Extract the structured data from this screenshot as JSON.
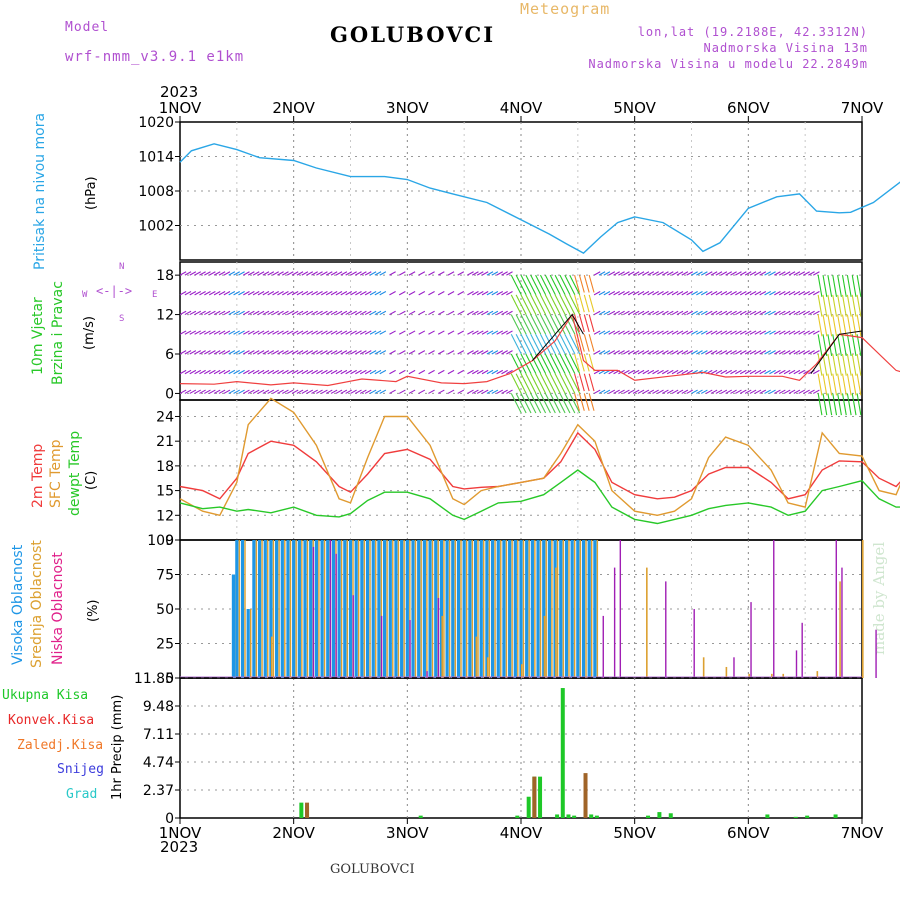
{
  "header": {
    "model_label": "Model",
    "model_name": "wrf-nmm_v3.9.1 e1km",
    "station": "GOLUBOVCI",
    "meteogram": "Meteogram",
    "coords": "lon,lat (19.2188E, 42.3312N)",
    "altitude": "Nadmorska Visina 13m",
    "model_altitude": "Nadmorska Visina u modelu 22.2849m",
    "footer_station": "GOLUBOVCI",
    "credit": "made by Angel"
  },
  "colors": {
    "pressure": "#2aa6e6",
    "temp2m": "#f03c3c",
    "sfc": "#e09a30",
    "dew": "#28c828",
    "high_cloud": "#1e96e6",
    "mid_cloud": "#dca030",
    "low_cloud": "#a01eb4",
    "label_purple": "#b050d0",
    "label_orange": "#e8b868"
  },
  "chart_data": [
    {
      "type": "line",
      "panel": "pressure",
      "ylabel_main": "Pritisak na nivou mora",
      "unit": "(hPa)",
      "year": "2023",
      "x_ticks": [
        "1NOV",
        "2NOV",
        "3NOV",
        "4NOV",
        "5NOV",
        "6NOV",
        "7NOV"
      ],
      "yticks": [
        1002,
        1008,
        1014,
        1020
      ],
      "ylim": [
        996,
        1020
      ],
      "grid": true,
      "series": [
        {
          "x": [
            0,
            0.1,
            0.3,
            0.5,
            0.7,
            1.0,
            1.2,
            1.5,
            1.8,
            2.0,
            2.2,
            2.4,
            2.7,
            3.0,
            3.25,
            3.4,
            3.55,
            3.7,
            3.85,
            4.0,
            4.25,
            4.5,
            4.6,
            4.75,
            5.0,
            5.25,
            5.45,
            5.6,
            5.8,
            5.9,
            6.1,
            6.4,
            6.7,
            7.0
          ],
          "y": [
            1013,
            1015,
            1016.2,
            1015.2,
            1013.8,
            1013.3,
            1012,
            1010.5,
            1010.5,
            1010,
            1008.5,
            1007.5,
            1006,
            1003,
            1000.5,
            998.8,
            997.2,
            1000,
            1002.5,
            1003.5,
            1002.5,
            999.5,
            997.5,
            999,
            1005,
            1007,
            1007.5,
            1004.5,
            1004.2,
            1004.3,
            1006,
            1010.5,
            1015,
            1018.8
          ]
        }
      ]
    },
    {
      "type": "line",
      "panel": "wind",
      "ylabel_main": "10m Vjetar",
      "ylabel_sub": "Brzina i Pravac",
      "unit": "(m/s)",
      "compass": {
        "n": "N",
        "s": "S",
        "e": "E",
        "w": "W"
      },
      "yticks": [
        0,
        6,
        12,
        18
      ],
      "ylim": [
        -1,
        20
      ],
      "series": [
        {
          "x": [
            0,
            0.3,
            0.5,
            0.8,
            1.0,
            1.3,
            1.6,
            1.9,
            2.0,
            2.3,
            2.5,
            2.7,
            2.9,
            3.1,
            3.3,
            3.45,
            3.55,
            3.65,
            3.85,
            4.0,
            4.3,
            4.6,
            4.8,
            5.0,
            5.3,
            5.45,
            5.6,
            5.8,
            6.0,
            6.3,
            6.6,
            6.9,
            7.0
          ],
          "y": [
            1.5,
            1.4,
            1.8,
            1.3,
            1.6,
            1.2,
            2.2,
            1.8,
            2.6,
            1.6,
            1.5,
            1.8,
            3.0,
            5.0,
            8.0,
            12.0,
            5.0,
            3.5,
            3.5,
            2.0,
            2.6,
            3.2,
            2.5,
            2.6,
            2.6,
            2.0,
            4.5,
            9.0,
            8.5,
            3.5,
            2.0,
            1.8,
            1.7
          ]
        }
      ]
    },
    {
      "type": "line",
      "panel": "temperature",
      "ylabel_t2m": "2m Temp",
      "ylabel_sfc": "SFC Temp",
      "ylabel_dew": "dewpt Temp",
      "unit": "(C)",
      "yticks": [
        9,
        12,
        15,
        18,
        21,
        24
      ],
      "ylim": [
        9,
        26
      ],
      "series": [
        {
          "name": "2m Temp",
          "x": [
            0,
            0.2,
            0.35,
            0.5,
            0.6,
            0.8,
            1.0,
            1.2,
            1.4,
            1.5,
            1.65,
            1.8,
            2.0,
            2.2,
            2.4,
            2.5,
            2.65,
            2.8,
            3.0,
            3.2,
            3.35,
            3.5,
            3.65,
            3.8,
            4.0,
            4.2,
            4.35,
            4.5,
            4.65,
            4.8,
            5.0,
            5.2,
            5.35,
            5.5,
            5.65,
            5.8,
            6.0,
            6.15,
            6.3,
            6.5,
            6.65,
            6.8,
            7.0
          ],
          "y": [
            15.5,
            15,
            14,
            16.5,
            19.5,
            21,
            20.5,
            18.5,
            15.5,
            14.8,
            17,
            19.5,
            20,
            18.8,
            15.5,
            15.2,
            15.4,
            15.5,
            16,
            16.5,
            18.5,
            22,
            20,
            16,
            14.5,
            14,
            14.2,
            15,
            17,
            17.8,
            17.8,
            16,
            14,
            14.5,
            17.5,
            18.6,
            18.5,
            16.5,
            15.5,
            18.5,
            21,
            19.2,
            15.5
          ]
        },
        {
          "name": "SFC Temp",
          "x": [
            0,
            0.2,
            0.35,
            0.5,
            0.6,
            0.8,
            1.0,
            1.2,
            1.4,
            1.5,
            1.65,
            1.8,
            2.0,
            2.2,
            2.4,
            2.5,
            2.65,
            2.8,
            3.0,
            3.2,
            3.35,
            3.5,
            3.65,
            3.8,
            4.0,
            4.2,
            4.35,
            4.5,
            4.65,
            4.8,
            5.0,
            5.2,
            5.35,
            5.5,
            5.65,
            5.8,
            6.0,
            6.15,
            6.3,
            6.5,
            6.65,
            6.8,
            7.0
          ],
          "y": [
            14,
            12.5,
            12,
            16,
            23,
            26.2,
            24.5,
            20.5,
            14,
            13.5,
            19,
            24,
            24,
            20.5,
            14,
            13.3,
            15,
            15.5,
            16,
            16.5,
            19.5,
            23,
            21,
            15,
            12.5,
            12,
            12.5,
            14,
            19,
            21.5,
            20.5,
            17.5,
            13.5,
            13,
            22,
            19.5,
            19.2,
            15,
            14.5,
            21,
            26,
            21.5,
            13.5
          ]
        },
        {
          "name": "dewpt Temp",
          "x": [
            0,
            0.2,
            0.35,
            0.5,
            0.6,
            0.8,
            1.0,
            1.2,
            1.4,
            1.5,
            1.65,
            1.8,
            2.0,
            2.2,
            2.4,
            2.5,
            2.65,
            2.8,
            3.0,
            3.2,
            3.35,
            3.5,
            3.65,
            3.8,
            4.0,
            4.2,
            4.35,
            4.5,
            4.65,
            4.8,
            5.0,
            5.2,
            5.35,
            5.5,
            5.65,
            5.8,
            6.0,
            6.15,
            6.3,
            6.5,
            6.65,
            6.8,
            7.0
          ],
          "y": [
            13.5,
            12.8,
            13,
            12.5,
            12.7,
            12.3,
            13,
            12,
            11.8,
            12.2,
            13.8,
            14.8,
            14.8,
            14,
            12,
            11.5,
            12.5,
            13.5,
            13.7,
            14.5,
            16,
            17.5,
            16,
            13,
            11.5,
            11,
            11.5,
            12,
            12.8,
            13.2,
            13.5,
            13,
            12,
            12.5,
            15,
            15.5,
            16.2,
            14,
            13,
            13,
            12.5,
            11.5,
            11
          ]
        }
      ]
    },
    {
      "type": "bar",
      "panel": "cloud",
      "ylabel_high": "Visoka Oblacnost",
      "ylabel_mid": "Srednja Oblacnost",
      "ylabel_low": "Niska Oblacnost",
      "unit": "(%)",
      "yticks": [
        0,
        25,
        50,
        75,
        100
      ],
      "ylim": [
        0,
        100
      ],
      "high_x": [
        0.47,
        0.5,
        0.55,
        0.6,
        0.65,
        0.7,
        0.75,
        0.8,
        0.85,
        0.9,
        0.95,
        1.0,
        1.05,
        1.1,
        1.15,
        1.2,
        1.25,
        1.3,
        1.35,
        1.4,
        1.45,
        1.5,
        1.55,
        1.6,
        1.65,
        1.7,
        1.75,
        1.8,
        1.85,
        1.9,
        1.95,
        2.0,
        2.05,
        2.1,
        2.15,
        2.2,
        2.25,
        2.3,
        2.35,
        2.4,
        2.45,
        2.5,
        2.55,
        2.6,
        2.65,
        2.7,
        2.75,
        2.8,
        2.85,
        2.9,
        2.95,
        3.0,
        3.05,
        3.1,
        3.15,
        3.2,
        3.25,
        3.3,
        3.35,
        3.4,
        3.45,
        3.5,
        3.55,
        3.6,
        3.65
      ],
      "high_y": [
        75,
        100,
        100,
        50,
        100,
        100,
        100,
        100,
        100,
        100,
        100,
        100,
        100,
        100,
        100,
        100,
        100,
        100,
        100,
        100,
        100,
        100,
        100,
        100,
        100,
        100,
        100,
        100,
        100,
        100,
        100,
        100,
        100,
        100,
        100,
        100,
        100,
        100,
        100,
        100,
        100,
        100,
        100,
        100,
        100,
        100,
        100,
        100,
        100,
        100,
        100,
        100,
        100,
        100,
        100,
        100,
        100,
        100,
        100,
        100,
        100,
        100,
        100,
        100,
        100
      ],
      "mid_x": [
        0.8,
        2.3,
        2.6,
        2.7,
        3.0,
        3.2,
        3.3,
        4.1,
        4.6,
        4.8,
        5.0,
        5.2,
        5.3,
        5.6,
        5.8,
        6.0
      ],
      "mid_y": [
        30,
        45,
        30,
        15,
        10,
        45,
        80,
        80,
        15,
        8,
        3,
        3,
        3,
        5,
        70,
        100
      ],
      "low_x": [
        1.15,
        1.3,
        1.35,
        1.5,
        1.75,
        2.0,
        2.15,
        2.25,
        3.7,
        3.8,
        3.85,
        4.25,
        4.5,
        4.85,
        5.0,
        5.2,
        5.4,
        5.45,
        5.75,
        5.8,
        6.1,
        6.5,
        6.7,
        6.9
      ],
      "low_y": [
        95,
        100,
        90,
        60,
        45,
        42,
        5,
        58,
        45,
        80,
        100,
        70,
        50,
        15,
        55,
        100,
        20,
        40,
        100,
        80,
        35,
        8,
        10,
        8
      ]
    },
    {
      "type": "bar",
      "panel": "precip",
      "ylabel": "1hr Precip (mm)",
      "legend": [
        "Ukupna Kisa",
        "Konvek.Kisa",
        "Zaledj.Kisa",
        "Snijeg",
        "Grad"
      ],
      "legend_colors": [
        "#1ec828",
        "#e82828",
        "#f07828",
        "#3c3cdc",
        "#28c8c8"
      ],
      "yticks": [
        "0",
        "2.37",
        "4.74",
        "7.11",
        "9.48",
        "11.85"
      ],
      "ylim": [
        0,
        11.85
      ],
      "total_x": [
        1.05,
        1.1,
        2.1,
        2.95,
        3.05,
        3.1,
        3.15,
        3.3,
        3.35,
        3.4,
        3.45,
        3.55,
        3.6,
        3.65,
        4.1,
        4.2,
        4.3,
        5.15,
        5.4,
        5.5,
        5.75
      ],
      "total_y": [
        1.3,
        1.0,
        0.2,
        0.2,
        1.8,
        3.5,
        3.5,
        0.3,
        11.0,
        0.3,
        0.2,
        0.6,
        0.3,
        0.2,
        0.2,
        0.5,
        0.4,
        0.3,
        0.1,
        0.2,
        0.3
      ],
      "conv_x": [
        1.1,
        3.1,
        3.55
      ],
      "conv_y": [
        1.3,
        3.5,
        3.8
      ]
    }
  ]
}
